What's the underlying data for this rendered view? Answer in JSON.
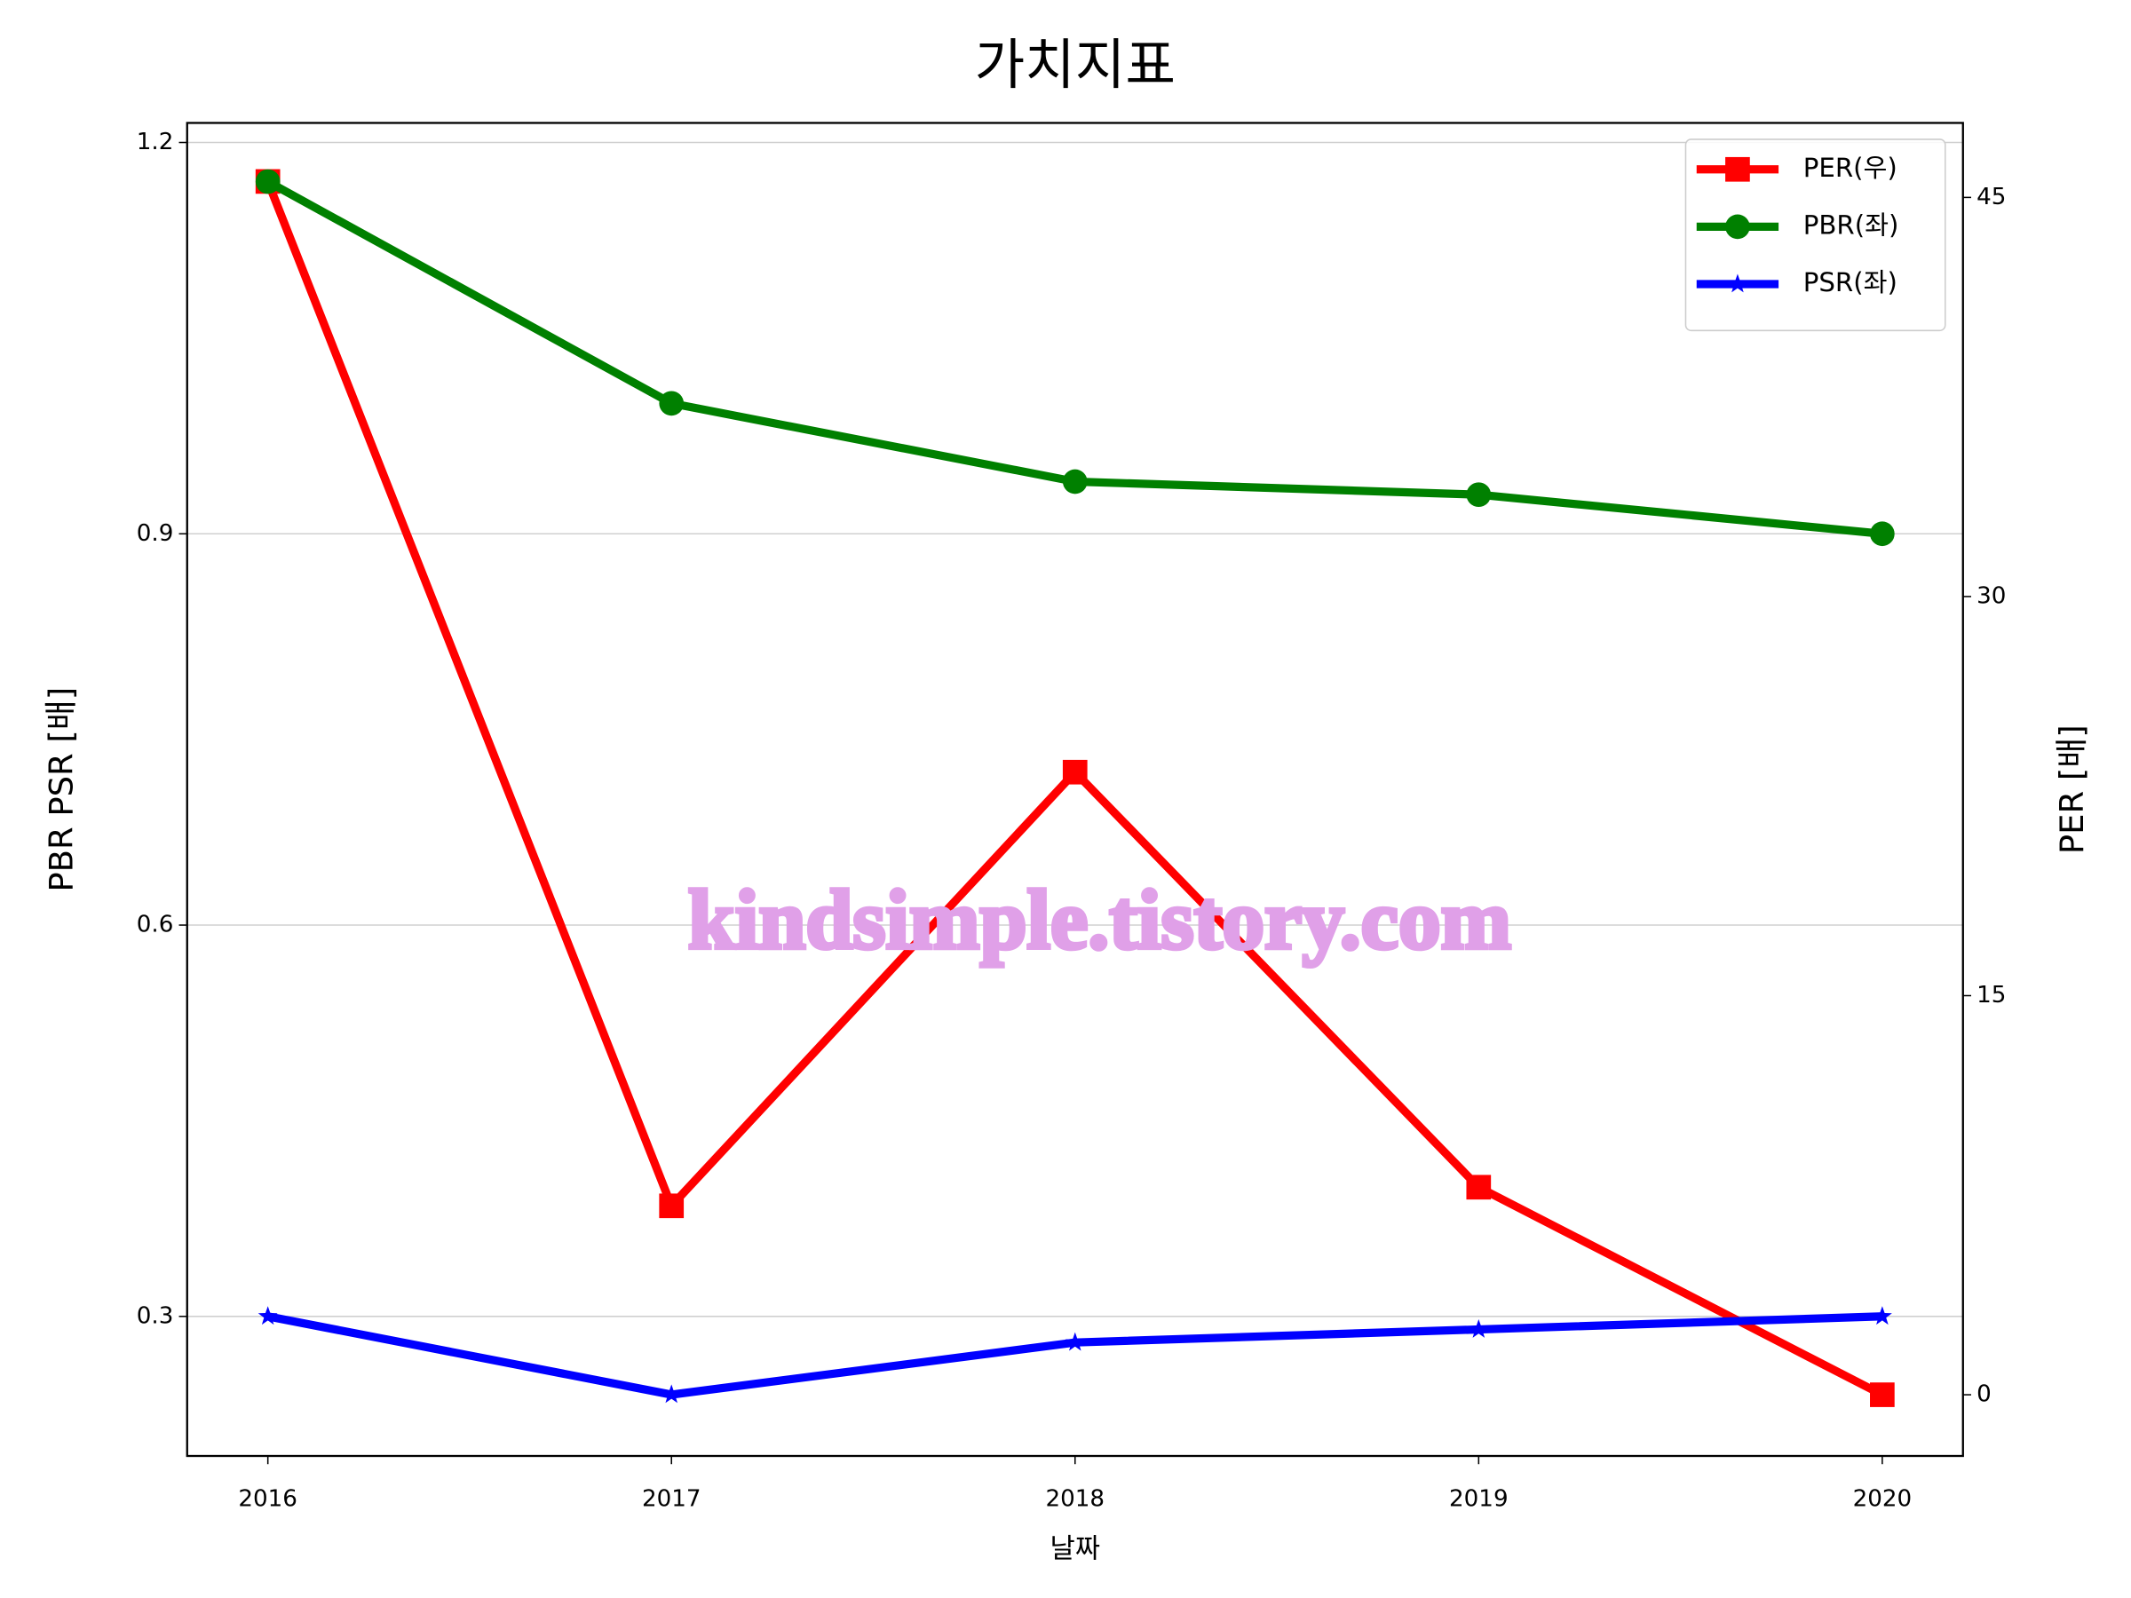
{
  "chart_data": {
    "type": "line",
    "title": "가치지표",
    "x_label": "날짜",
    "y_label": "PBR PSR [배]",
    "y_label_color": "green",
    "y2_label": "PER [배]",
    "y2_label_color": "red",
    "watermark": "kindsimple.tistory.com",
    "x": [
      2016,
      2017,
      2018,
      2019,
      2020
    ],
    "xlim": [
      2015.8,
      2020.2
    ],
    "xticks": [
      2016,
      2017,
      2018,
      2019,
      2020
    ],
    "ylim": [
      0.193,
      1.215
    ],
    "yticks": [
      0.3,
      0.6,
      0.9,
      1.2
    ],
    "y2lim": [
      -2.3,
      47.8
    ],
    "y2ticks": [
      0,
      15,
      30,
      45
    ],
    "grid": true,
    "legend": "upper right",
    "series": [
      {
        "name": "PER(우)",
        "color": "red",
        "marker": "square",
        "axis": "y2",
        "values": [
          45.6,
          7.1,
          23.4,
          7.8,
          0
        ]
      },
      {
        "name": "PBR(좌)",
        "color": "green",
        "marker": "circle",
        "values": [
          1.17,
          1.0,
          0.94,
          0.93,
          0.9
        ]
      },
      {
        "name": "PSR(좌)",
        "color": "blue",
        "marker": "star",
        "values": [
          0.3,
          0.24,
          0.28,
          0.29,
          0.3
        ]
      }
    ]
  }
}
